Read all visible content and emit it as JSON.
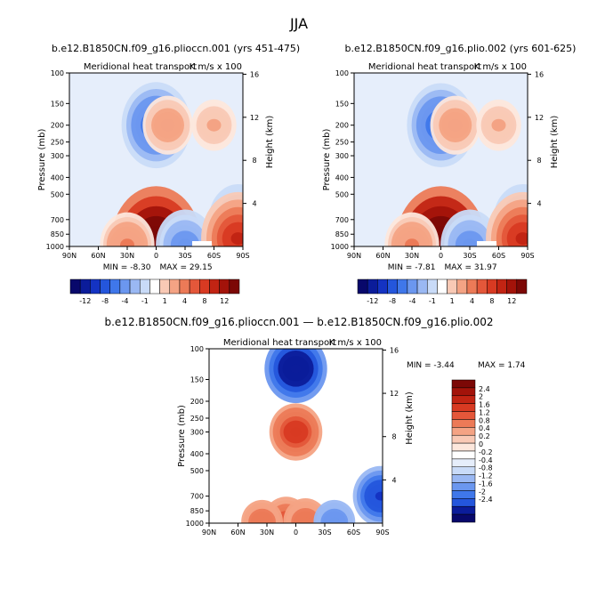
{
  "figure": {
    "title": "JJA",
    "subtitle_diff": "b.e12.B1850CN.f09_g16.plioccn.001 — b.e12.B1850CN.f09_g16.plio.002"
  },
  "colors": {
    "neg": [
      "#08086b",
      "#0b1c9a",
      "#1433c3",
      "#2456dc",
      "#3f77ea",
      "#6b97ef",
      "#9ab8f3",
      "#c9dbf8",
      "#e6eefb"
    ],
    "pos": [
      "#fde7dc",
      "#f9c9b5",
      "#f4a384",
      "#ec7a57",
      "#e4573a",
      "#d83a22",
      "#c22413",
      "#a3130a",
      "#7c0806"
    ],
    "zero": "#ffffff"
  },
  "chart_data": [
    {
      "type": "heatmap",
      "title_left": "b.e12.B1850CN.f09_g16.plioccn.001 (yrs 451-475)",
      "title_inner": "Meridional heat transport",
      "units": "K m/s x 100",
      "min_label": "MIN =",
      "min_value": "-8.30",
      "max_label": "MAX =",
      "max_value": "29.15",
      "x_ticks": [
        "90N",
        "60N",
        "30N",
        "0",
        "30S",
        "60S",
        "90S"
      ],
      "y_left_label": "Pressure (mb)",
      "y_left_ticks": [
        "100",
        "150",
        "200",
        "250",
        "300",
        "400",
        "500",
        "700",
        "850",
        "1000"
      ],
      "y_right_label": "Height (km)",
      "y_right_ticks": [
        "16",
        "12",
        "8",
        "4"
      ],
      "colorbar_labels": [
        "-12",
        "-8",
        "-4",
        "-1",
        "1",
        "4",
        "8",
        "12"
      ],
      "features": [
        {
          "lat": 0,
          "p": 200,
          "value": -8.3
        },
        {
          "lat": -12,
          "p": 200,
          "value": 3
        },
        {
          "lat": 0,
          "p": 980,
          "value": 29.15
        },
        {
          "lat": 30,
          "p": 980,
          "value": 4
        },
        {
          "lat": -30,
          "p": 980,
          "value": -5
        },
        {
          "lat": -60,
          "p": 200,
          "value": 2
        },
        {
          "lat": -85,
          "p": 700,
          "value": -5
        },
        {
          "lat": -85,
          "p": 900,
          "value": 10
        }
      ]
    },
    {
      "type": "heatmap",
      "title_left": "b.e12.B1850CN.f09_g16.plio.002 (yrs 601-625)",
      "title_inner": "Meridional heat transport",
      "units": "K m/s x 100",
      "min_label": "MIN =",
      "min_value": "-7.81",
      "max_label": "MAX =",
      "max_value": "31.97",
      "x_ticks": [
        "90N",
        "60N",
        "30N",
        "0",
        "30S",
        "60S",
        "90S"
      ],
      "y_left_label": "Pressure (mb)",
      "y_left_ticks": [
        "100",
        "150",
        "200",
        "250",
        "300",
        "400",
        "500",
        "700",
        "850",
        "1000"
      ],
      "y_right_label": "Height (km)",
      "y_right_ticks": [
        "16",
        "12",
        "8",
        "4"
      ],
      "colorbar_labels": [
        "-12",
        "-8",
        "-4",
        "-1",
        "1",
        "4",
        "8",
        "12"
      ],
      "features": [
        {
          "lat": 0,
          "p": 200,
          "value": -7.81
        },
        {
          "lat": -15,
          "p": 200,
          "value": 3
        },
        {
          "lat": 0,
          "p": 980,
          "value": 31.97
        },
        {
          "lat": 30,
          "p": 980,
          "value": 4
        },
        {
          "lat": -30,
          "p": 980,
          "value": -5
        },
        {
          "lat": -60,
          "p": 200,
          "value": 2
        },
        {
          "lat": -85,
          "p": 700,
          "value": -5
        },
        {
          "lat": -85,
          "p": 900,
          "value": 10
        }
      ]
    },
    {
      "type": "heatmap",
      "title_inner": "Meridional heat transport",
      "units": "K m/s x 100",
      "min_label": "MIN =",
      "min_value": "-3.44",
      "max_label": "MAX =",
      "max_value": "1.74",
      "x_ticks": [
        "90N",
        "60N",
        "30N",
        "0",
        "30S",
        "60S",
        "90S"
      ],
      "y_left_label": "Pressure (mb)",
      "y_left_ticks": [
        "100",
        "150",
        "200",
        "250",
        "300",
        "400",
        "500",
        "700",
        "850",
        "1000"
      ],
      "y_right_label": "Height (km)",
      "y_right_ticks": [
        "16",
        "12",
        "8",
        "4"
      ],
      "colorbar_labels": [
        "2.4",
        "2",
        "1.6",
        "1.2",
        "0.8",
        "0.4",
        "0.2",
        "0",
        "-0.2",
        "-0.4",
        "-0.8",
        "-1.2",
        "-1.6",
        "-2",
        "-2.4"
      ],
      "features": [
        {
          "lat": 0,
          "p": 130,
          "value": -3.44
        },
        {
          "lat": 0,
          "p": 300,
          "value": 1.74
        },
        {
          "lat": 10,
          "p": 980,
          "value": 1.2
        },
        {
          "lat": -10,
          "p": 980,
          "value": 1.0
        },
        {
          "lat": 35,
          "p": 980,
          "value": 0.8
        },
        {
          "lat": -40,
          "p": 980,
          "value": -0.8
        },
        {
          "lat": -88,
          "p": 700,
          "value": -2
        }
      ]
    }
  ]
}
